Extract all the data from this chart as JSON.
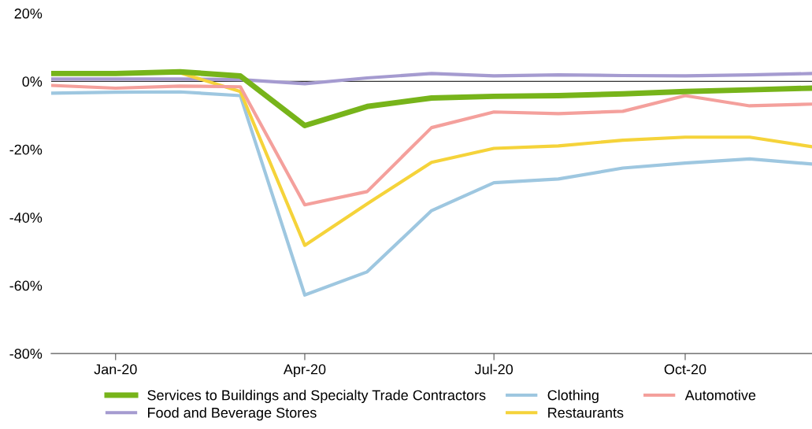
{
  "chart_data": {
    "type": "line",
    "x": [
      "2019-12",
      "2020-01",
      "2020-02",
      "2020-03",
      "2020-04",
      "2020-05",
      "2020-06",
      "2020-07",
      "2020-08",
      "2020-09",
      "2020-10",
      "2020-11",
      "2020-12"
    ],
    "series": [
      {
        "name": "Services to Buildings and Specialty Trade Contractors",
        "color": "#77b41a",
        "values": [
          2.3,
          2.3,
          2.8,
          1.6,
          -13,
          -7.4,
          -4.9,
          -4.4,
          -4.2,
          -3.7,
          -3,
          -2.5,
          -2
        ]
      },
      {
        "name": "Food and Beverage Stores",
        "color": "#a59bd0",
        "values": [
          0.7,
          0.7,
          0.7,
          0.5,
          -0.7,
          1,
          2.3,
          1.6,
          1.9,
          1.7,
          1.6,
          1.9,
          2.3
        ]
      },
      {
        "name": "Clothing",
        "color": "#9ec7e0",
        "values": [
          -3.5,
          -3.2,
          -3.1,
          -4.2,
          -62.8,
          -56,
          -38,
          -29.8,
          -28.7,
          -25.5,
          -24,
          -22.8,
          -24.3
        ]
      },
      {
        "name": "Restaurants",
        "color": "#f5d33a",
        "values": [
          2.5,
          2.3,
          2.5,
          -3,
          -48.2,
          -36,
          -23.8,
          -19.7,
          -19,
          -17.3,
          -16.4,
          -16.4,
          -19.2
        ]
      },
      {
        "name": "Automotive",
        "color": "#f4a09c",
        "values": [
          -1.2,
          -2,
          -1.4,
          -1.6,
          -36.3,
          -32.4,
          -13.6,
          -9,
          -9.5,
          -8.8,
          -4.2,
          -7.2,
          -6.7
        ]
      }
    ],
    "xlim": [
      "2019-12",
      "2020-12"
    ],
    "xticks": [
      {
        "value": "2020-01",
        "label": "Jan-20"
      },
      {
        "value": "2020-04",
        "label": "Apr-20"
      },
      {
        "value": "2020-07",
        "label": "Jul-20"
      },
      {
        "value": "2020-10",
        "label": "Oct-20"
      }
    ],
    "ylim": [
      -80,
      20
    ],
    "yticks": [
      {
        "value": -80,
        "label": "-80%"
      },
      {
        "value": -60,
        "label": "-60%"
      },
      {
        "value": -40,
        "label": "-40%"
      },
      {
        "value": -20,
        "label": "-20%"
      },
      {
        "value": 0,
        "label": "0%"
      },
      {
        "value": 20,
        "label": "20%"
      }
    ],
    "ref_lines": [
      {
        "axis": "y",
        "value": 0,
        "color": "#333333"
      }
    ],
    "grid": false,
    "legend": "bottom",
    "marker": "none",
    "line_style": "solid"
  }
}
